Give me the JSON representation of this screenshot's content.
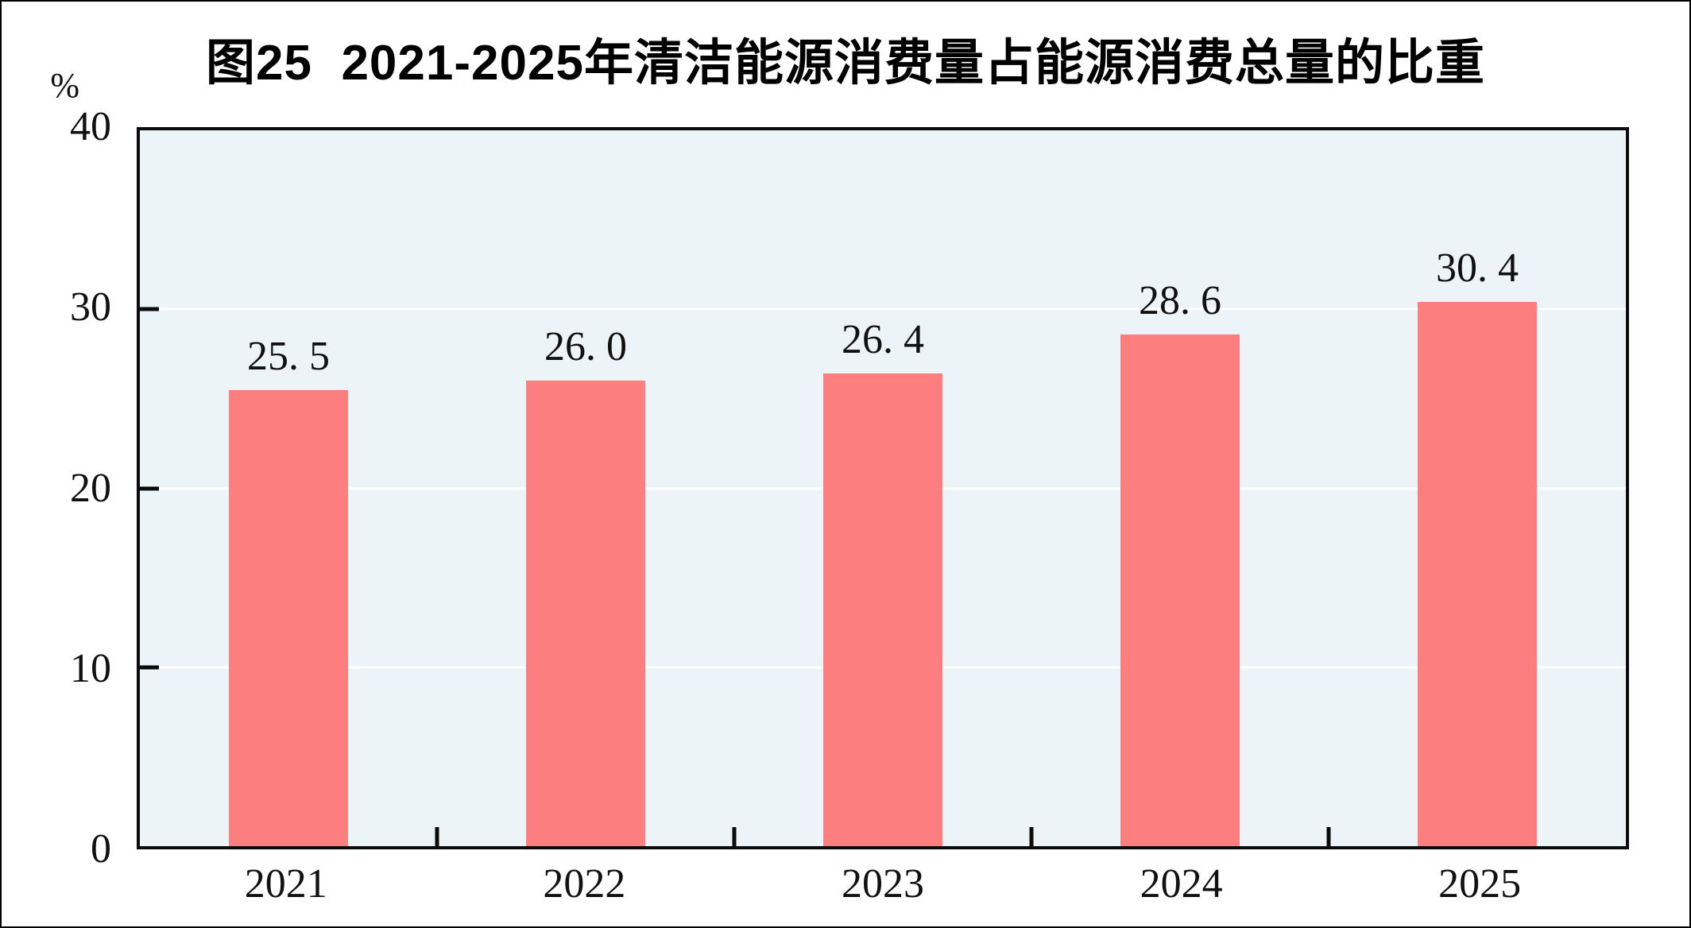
{
  "figure": {
    "title": "图25  2021-2025年清洁能源消费量占能源消费总量的比重",
    "y_unit_label": "%"
  },
  "chart_data": {
    "type": "bar",
    "title": "图25  2021-2025年清洁能源消费量占能源消费总量的比重",
    "categories": [
      "2021",
      "2022",
      "2023",
      "2024",
      "2025"
    ],
    "values": [
      25.5,
      26.0,
      26.4,
      28.6,
      30.4
    ],
    "value_labels": [
      "25. 5",
      "26. 0",
      "26. 4",
      "28. 6",
      "30. 4"
    ],
    "xlabel": "",
    "ylabel": "%",
    "ylim": [
      0,
      40
    ],
    "yticks": [
      0,
      10,
      20,
      30,
      40
    ],
    "grid": "horizontal",
    "legend_position": "none",
    "bar_color": "#FC7E7E",
    "plot_background": "#ECF4F7",
    "gridline_color": "#FFFFFF",
    "axis_color": "#0B0B0B"
  }
}
